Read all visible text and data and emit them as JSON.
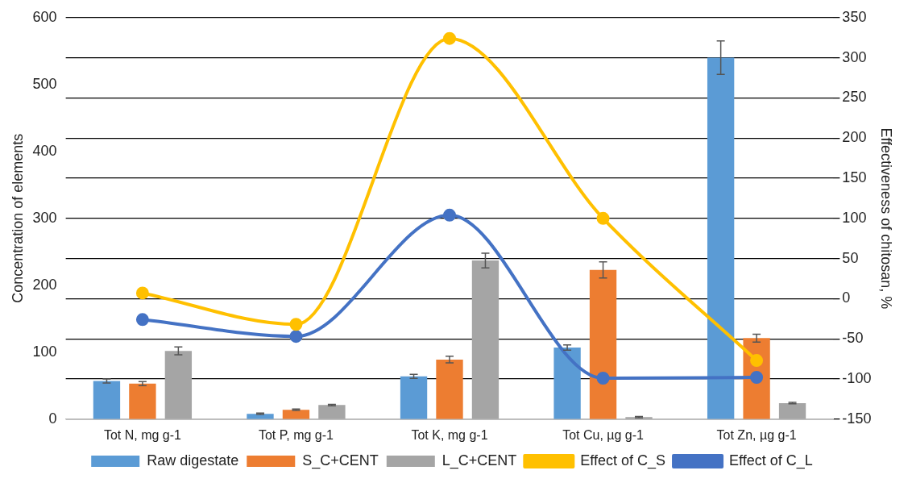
{
  "chart_data": {
    "type": "bar",
    "ylabel": "Concentration of elements",
    "y2label": "Effectiveness of chitosan, %",
    "categories": [
      "Tot N, mg g-1",
      "Tot P, mg g-1",
      "Tot K, mg g-1",
      "Tot Cu, µg g-1",
      "Tot Zn, µg g-1"
    ],
    "series": [
      {
        "name": "Raw digestate",
        "color": "#5b9bd5",
        "values": [
          57,
          8,
          64,
          107,
          540
        ],
        "errors": [
          3,
          1,
          3,
          4,
          25
        ]
      },
      {
        "name": "S_C+CENT",
        "color": "#ed7d31",
        "values": [
          53,
          14,
          89,
          223,
          121
        ],
        "errors": [
          3,
          1,
          5,
          12,
          6
        ]
      },
      {
        "name": "L_C+CENT",
        "color": "#a5a5a5",
        "values": [
          102,
          21,
          237,
          3,
          24
        ],
        "errors": [
          6,
          1,
          11,
          1,
          1
        ]
      },
      {
        "name": "Effect of C_S",
        "type": "line",
        "axis": "y2",
        "color": "#ffc000",
        "values": [
          7,
          -32,
          324,
          100,
          -77
        ]
      },
      {
        "name": "Effect of C_L",
        "type": "line",
        "axis": "y2",
        "color": "#4472c4",
        "values": [
          -26,
          -47,
          104,
          -99,
          -98
        ]
      }
    ],
    "ylim": [
      0,
      600
    ],
    "yticks": [
      0,
      100,
      200,
      300,
      400,
      500,
      600
    ],
    "y2lim": [
      -150,
      350
    ],
    "y2ticks": [
      -150,
      -100,
      -50,
      0,
      50,
      100,
      150,
      200,
      250,
      300,
      350
    ],
    "grid": "y2",
    "legend": "bottom",
    "marker": "circle",
    "line_style": "solid"
  }
}
